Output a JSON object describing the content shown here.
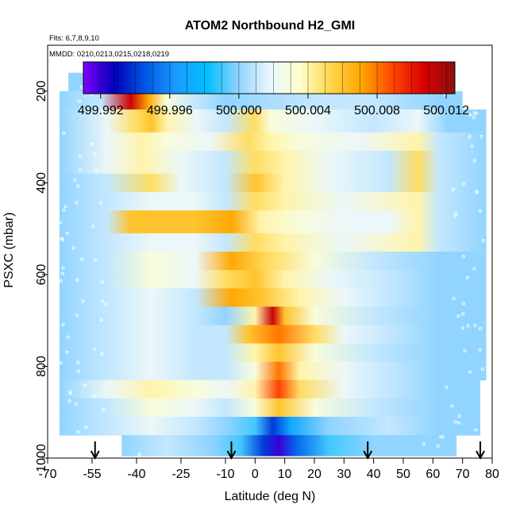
{
  "chart_data": {
    "type": "heatmap",
    "title": "ATOM2 Northbound H2_GMI",
    "flights_label": "Flts: 6,7,8,9,10",
    "dates_label": "MMDD: 0210,0213,0215,0218,0219",
    "xlabel": "Latitude (deg N)",
    "ylabel": "PSXC (mbar)",
    "xlim": [
      -70,
      80
    ],
    "ylim": [
      1000,
      100
    ],
    "x_ticks": [
      -70,
      -55,
      -40,
      -25,
      -10,
      0,
      10,
      20,
      30,
      40,
      50,
      60,
      70,
      80
    ],
    "y_ticks": [
      200,
      400,
      600,
      800,
      1000
    ],
    "colorbar": {
      "min": 499.991,
      "max": 500.0125,
      "ticks": [
        499.992,
        499.996,
        500.0,
        500.004,
        500.008,
        500.012
      ],
      "tick_labels": [
        "499.992",
        "499.996",
        "500.000",
        "500.004",
        "500.008",
        "500.012"
      ],
      "colors": [
        "#7f00ff",
        "#0000b8",
        "#0058e6",
        "#1a9cff",
        "#00bfff",
        "#8fd3ff",
        "#e8f6ff",
        "#ffffcc",
        "#ffd54a",
        "#ffa500",
        "#ff4500",
        "#d90000",
        "#8b1010"
      ]
    },
    "profile_markers_lat": [
      -54,
      -8,
      38,
      76
    ],
    "levels": [
      {
        "p_top": 160,
        "p_bot": 200,
        "x_start": -63,
        "x_end": 38,
        "segments": [
          [
            -63,
            500.0
          ],
          [
            38,
            500.0
          ]
        ]
      },
      {
        "p_top": 200,
        "p_bot": 240,
        "x_start": -66,
        "x_end": 70,
        "segments": [
          [
            -66,
            500.0
          ],
          [
            -52,
            500.001
          ],
          [
            -42,
            500.011
          ],
          [
            -36,
            500.007
          ],
          [
            -30,
            500.003
          ],
          [
            -20,
            500.001
          ],
          [
            -10,
            500.0
          ],
          [
            20,
            500.001
          ],
          [
            40,
            500.001
          ],
          [
            62,
            500.0
          ],
          [
            70,
            500.0
          ]
        ]
      },
      {
        "p_top": 240,
        "p_bot": 290,
        "x_start": -66,
        "x_end": 78,
        "segments": [
          [
            -66,
            500.0
          ],
          [
            -50,
            500.002
          ],
          [
            -40,
            500.005
          ],
          [
            -35,
            500.006
          ],
          [
            -30,
            500.004
          ],
          [
            -20,
            500.002
          ],
          [
            -10,
            500.001
          ],
          [
            0,
            500.005
          ],
          [
            5,
            500.003
          ],
          [
            20,
            500.002
          ],
          [
            40,
            500.001
          ],
          [
            55,
            500.002
          ],
          [
            65,
            500.0
          ],
          [
            78,
            500.0
          ]
        ]
      },
      {
        "p_top": 290,
        "p_bot": 330,
        "x_start": -66,
        "x_end": 78,
        "segments": [
          [
            -66,
            500.0
          ],
          [
            -50,
            500.002
          ],
          [
            -38,
            500.004
          ],
          [
            -30,
            500.003
          ],
          [
            -15,
            500.002
          ],
          [
            -2,
            500.005
          ],
          [
            5,
            500.004
          ],
          [
            15,
            500.003
          ],
          [
            35,
            500.002
          ],
          [
            55,
            500.004
          ],
          [
            62,
            500.001
          ],
          [
            78,
            500.0
          ]
        ]
      },
      {
        "p_top": 330,
        "p_bot": 380,
        "x_start": -66,
        "x_end": 78,
        "segments": [
          [
            -66,
            500.0
          ],
          [
            -50,
            500.002
          ],
          [
            -38,
            500.004
          ],
          [
            -25,
            500.002
          ],
          [
            -10,
            500.001
          ],
          [
            0,
            500.005
          ],
          [
            10,
            500.004
          ],
          [
            25,
            500.002
          ],
          [
            45,
            500.001
          ],
          [
            55,
            500.005
          ],
          [
            62,
            500.001
          ],
          [
            78,
            500.0
          ]
        ]
      },
      {
        "p_top": 380,
        "p_bot": 420,
        "x_start": -66,
        "x_end": 78,
        "segments": [
          [
            -66,
            500.0
          ],
          [
            -50,
            500.001
          ],
          [
            -35,
            500.005
          ],
          [
            -25,
            500.002
          ],
          [
            -10,
            500.001
          ],
          [
            0,
            500.006
          ],
          [
            10,
            500.004
          ],
          [
            25,
            500.002
          ],
          [
            45,
            500.001
          ],
          [
            55,
            500.005
          ],
          [
            62,
            500.001
          ],
          [
            78,
            500.0
          ]
        ]
      },
      {
        "p_top": 420,
        "p_bot": 460,
        "x_start": -66,
        "x_end": 78,
        "segments": [
          [
            -66,
            500.0
          ],
          [
            -50,
            500.001
          ],
          [
            -35,
            500.002
          ],
          [
            -20,
            500.002
          ],
          [
            -10,
            500.001
          ],
          [
            0,
            500.005
          ],
          [
            10,
            500.004
          ],
          [
            30,
            500.002
          ],
          [
            55,
            500.004
          ],
          [
            62,
            500.001
          ],
          [
            78,
            500.0
          ]
        ]
      },
      {
        "p_top": 460,
        "p_bot": 510,
        "x_start": -66,
        "x_end": 78,
        "segments": [
          [
            -66,
            500.0
          ],
          [
            -50,
            500.001
          ],
          [
            -42,
            500.006
          ],
          [
            -20,
            500.006
          ],
          [
            -8,
            500.007
          ],
          [
            2,
            500.004
          ],
          [
            15,
            500.003
          ],
          [
            30,
            500.002
          ],
          [
            45,
            500.002
          ],
          [
            55,
            500.004
          ],
          [
            62,
            500.001
          ],
          [
            78,
            500.0
          ]
        ]
      },
      {
        "p_top": 510,
        "p_bot": 550,
        "x_start": -66,
        "x_end": 78,
        "segments": [
          [
            -66,
            500.0
          ],
          [
            -50,
            500.001
          ],
          [
            -35,
            500.002
          ],
          [
            -20,
            500.002
          ],
          [
            -10,
            500.001
          ],
          [
            0,
            500.005
          ],
          [
            10,
            500.004
          ],
          [
            30,
            500.002
          ],
          [
            55,
            500.004
          ],
          [
            62,
            500.001
          ],
          [
            78,
            500.0
          ]
        ]
      },
      {
        "p_top": 550,
        "p_bot": 590,
        "x_start": -66,
        "x_end": 78,
        "segments": [
          [
            -66,
            500.0
          ],
          [
            -50,
            500.001
          ],
          [
            -35,
            500.003
          ],
          [
            -20,
            500.002
          ],
          [
            -8,
            500.007
          ],
          [
            5,
            500.005
          ],
          [
            20,
            500.003
          ],
          [
            40,
            500.001
          ],
          [
            62,
            500.0
          ],
          [
            78,
            500.0
          ]
        ]
      },
      {
        "p_top": 590,
        "p_bot": 630,
        "x_start": -66,
        "x_end": 78,
        "segments": [
          [
            -66,
            500.0
          ],
          [
            -50,
            500.001
          ],
          [
            -35,
            500.003
          ],
          [
            -20,
            500.002
          ],
          [
            -10,
            500.005
          ],
          [
            0,
            500.006
          ],
          [
            10,
            500.004
          ],
          [
            25,
            500.002
          ],
          [
            45,
            500.001
          ],
          [
            62,
            500.0
          ],
          [
            78,
            500.0
          ]
        ]
      },
      {
        "p_top": 630,
        "p_bot": 670,
        "x_start": -66,
        "x_end": 78,
        "segments": [
          [
            -66,
            500.0
          ],
          [
            -50,
            500.001
          ],
          [
            -35,
            500.002
          ],
          [
            -20,
            500.001
          ],
          [
            -8,
            500.007
          ],
          [
            2,
            500.006
          ],
          [
            15,
            500.004
          ],
          [
            30,
            500.002
          ],
          [
            45,
            500.001
          ],
          [
            62,
            500.0
          ],
          [
            78,
            500.0
          ]
        ]
      },
      {
        "p_top": 670,
        "p_bot": 710,
        "x_start": -66,
        "x_end": 78,
        "segments": [
          [
            -66,
            500.0
          ],
          [
            -50,
            500.001
          ],
          [
            -35,
            500.002
          ],
          [
            -20,
            500.001
          ],
          [
            -10,
            500.0
          ],
          [
            0,
            500.004
          ],
          [
            6,
            500.011
          ],
          [
            10,
            500.006
          ],
          [
            20,
            500.003
          ],
          [
            40,
            500.001
          ],
          [
            62,
            500.0
          ],
          [
            78,
            500.0
          ]
        ]
      },
      {
        "p_top": 710,
        "p_bot": 750,
        "x_start": -66,
        "x_end": 78,
        "segments": [
          [
            -66,
            500.0
          ],
          [
            -50,
            500.001
          ],
          [
            -35,
            500.002
          ],
          [
            -20,
            500.001
          ],
          [
            -10,
            500.001
          ],
          [
            -2,
            500.006
          ],
          [
            8,
            500.008
          ],
          [
            20,
            500.005
          ],
          [
            30,
            500.002
          ],
          [
            45,
            500.001
          ],
          [
            62,
            500.0
          ],
          [
            78,
            500.0
          ]
        ]
      },
      {
        "p_top": 750,
        "p_bot": 790,
        "x_start": -66,
        "x_end": 78,
        "segments": [
          [
            -66,
            500.0
          ],
          [
            -50,
            500.001
          ],
          [
            -35,
            500.002
          ],
          [
            -20,
            500.001
          ],
          [
            -10,
            500.001
          ],
          [
            0,
            500.004
          ],
          [
            8,
            500.006
          ],
          [
            20,
            500.003
          ],
          [
            40,
            500.001
          ],
          [
            62,
            500.0
          ],
          [
            78,
            500.0
          ]
        ]
      },
      {
        "p_top": 790,
        "p_bot": 830,
        "x_start": -66,
        "x_end": 78,
        "segments": [
          [
            -66,
            500.0
          ],
          [
            -50,
            500.001
          ],
          [
            -35,
            500.002
          ],
          [
            -20,
            500.001
          ],
          [
            -10,
            500.001
          ],
          [
            0,
            500.003
          ],
          [
            8,
            500.008
          ],
          [
            15,
            500.004
          ],
          [
            30,
            500.002
          ],
          [
            45,
            500.001
          ],
          [
            62,
            500.0
          ],
          [
            78,
            500.0
          ]
        ]
      },
      {
        "p_top": 830,
        "p_bot": 870,
        "x_start": -66,
        "x_end": 76,
        "segments": [
          [
            -66,
            500.0
          ],
          [
            -50,
            500.002
          ],
          [
            -35,
            500.004
          ],
          [
            -20,
            500.003
          ],
          [
            -10,
            500.002
          ],
          [
            0,
            500.004
          ],
          [
            8,
            500.009
          ],
          [
            15,
            500.005
          ],
          [
            30,
            500.002
          ],
          [
            45,
            500.001
          ],
          [
            62,
            500.0
          ],
          [
            76,
            500.0
          ]
        ]
      },
      {
        "p_top": 870,
        "p_bot": 910,
        "x_start": -66,
        "x_end": 76,
        "segments": [
          [
            -66,
            500.0
          ],
          [
            -50,
            500.001
          ],
          [
            -35,
            500.003
          ],
          [
            -20,
            500.002
          ],
          [
            -10,
            500.001
          ],
          [
            0,
            500.003
          ],
          [
            8,
            500.006
          ],
          [
            20,
            500.003
          ],
          [
            40,
            500.001
          ],
          [
            62,
            500.0
          ],
          [
            76,
            500.0
          ]
        ]
      },
      {
        "p_top": 910,
        "p_bot": 950,
        "x_start": -66,
        "x_end": 76,
        "segments": [
          [
            -66,
            500.0
          ],
          [
            -50,
            500.001
          ],
          [
            -35,
            500.002
          ],
          [
            -20,
            500.001
          ],
          [
            -10,
            500.0
          ],
          [
            0,
            499.999
          ],
          [
            6,
            499.994
          ],
          [
            12,
            499.997
          ],
          [
            25,
            500.0
          ],
          [
            45,
            500.001
          ],
          [
            62,
            500.0
          ],
          [
            76,
            500.0
          ]
        ]
      },
      {
        "p_top": 950,
        "p_bot": 995,
        "x_start": -45,
        "x_end": 68,
        "segments": [
          [
            -45,
            500.0
          ],
          [
            -30,
            500.001
          ],
          [
            -15,
            500.0
          ],
          [
            -5,
            499.999
          ],
          [
            3,
            499.994
          ],
          [
            8,
            499.992
          ],
          [
            14,
            499.995
          ],
          [
            25,
            499.999
          ],
          [
            40,
            500.0
          ],
          [
            55,
            500.0
          ],
          [
            68,
            500.0
          ]
        ]
      }
    ]
  }
}
